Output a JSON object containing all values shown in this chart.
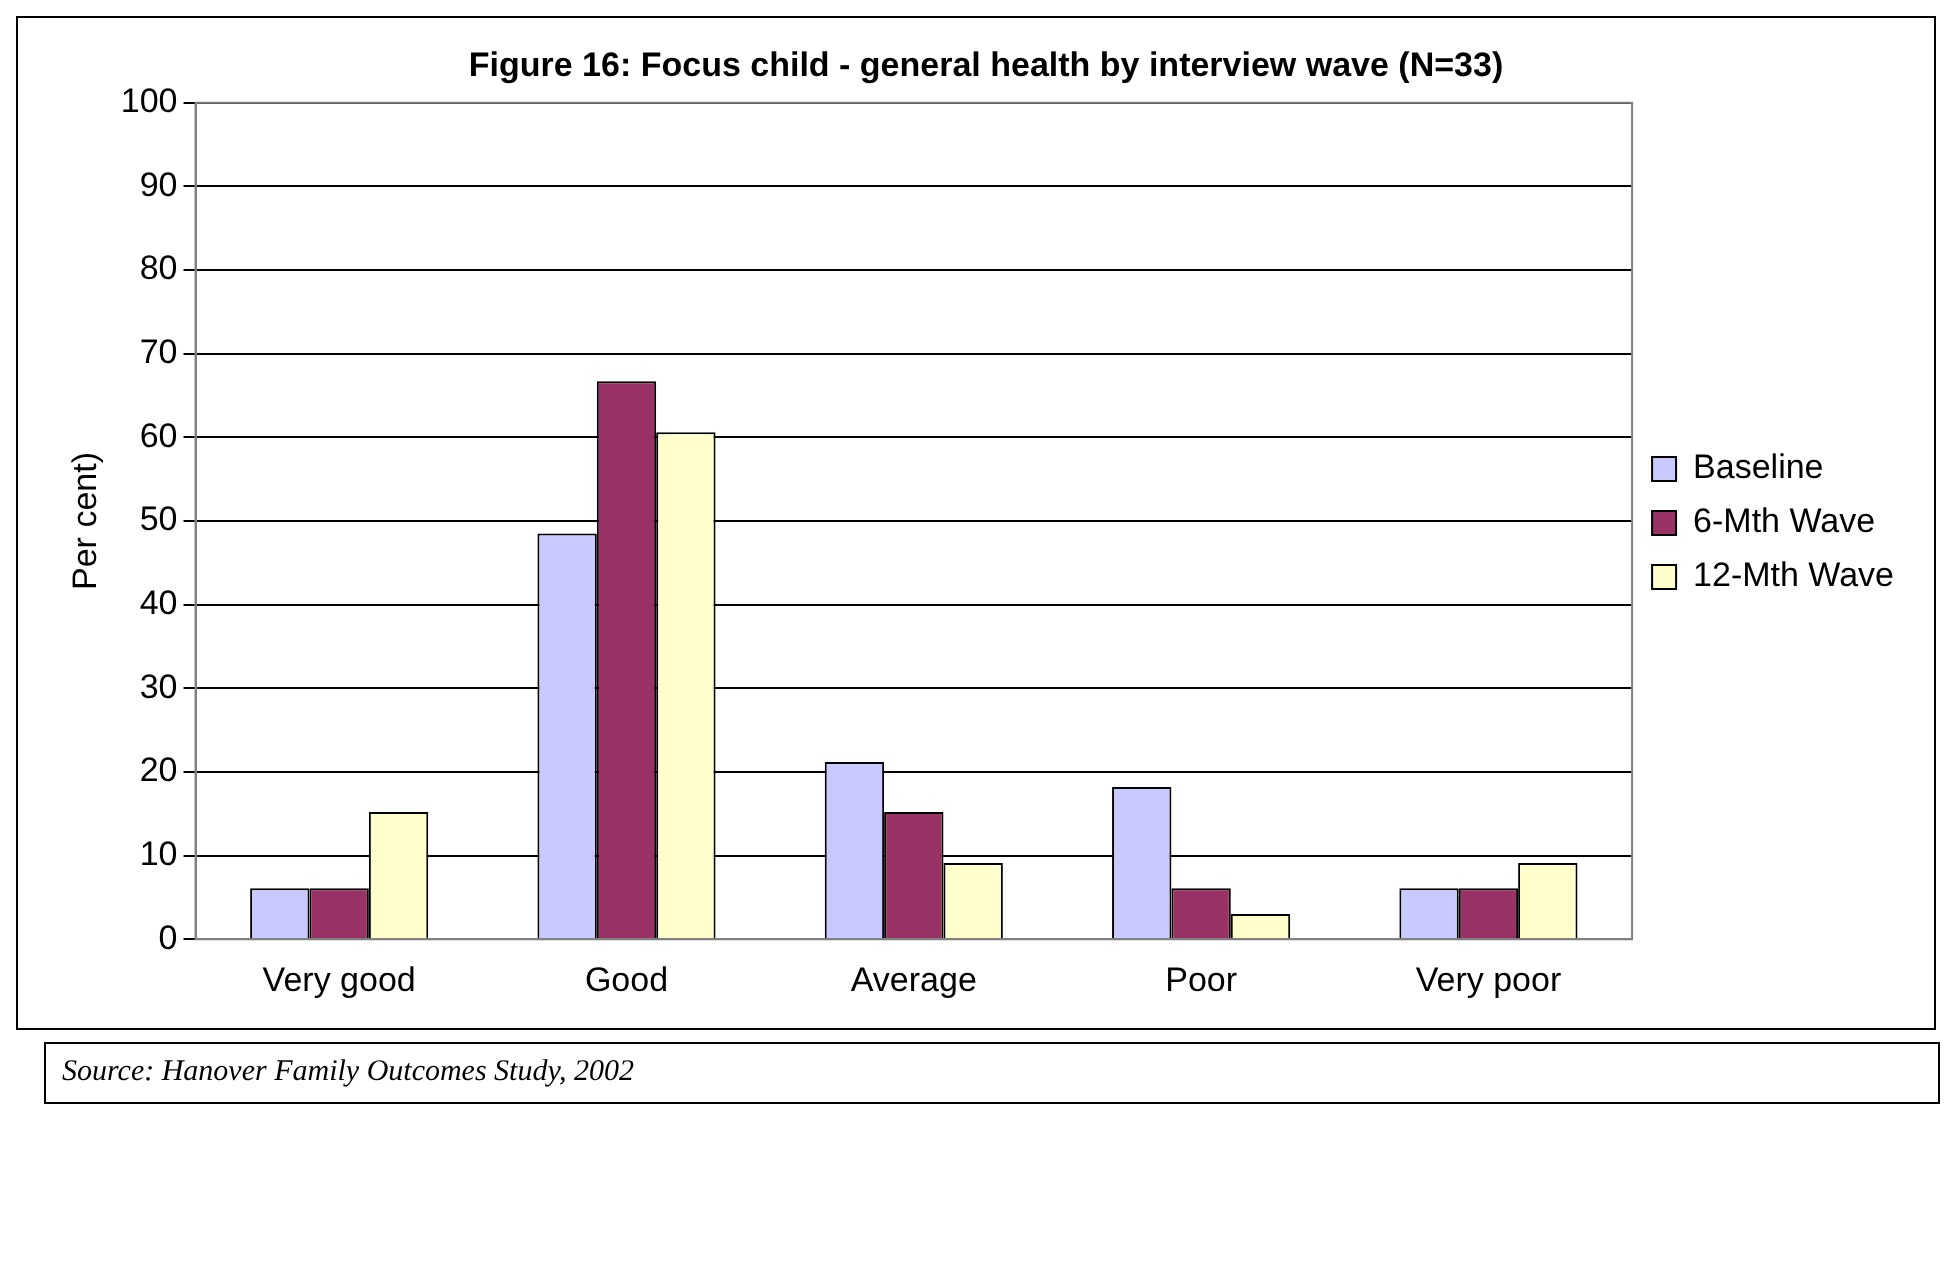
{
  "chart_data": {
    "type": "bar",
    "title": "Figure 16: Focus child - general health by interview wave (N=33)",
    "categories": [
      "Very good",
      "Good",
      "Average",
      "Poor",
      "Very poor"
    ],
    "series": [
      {
        "name": "Baseline",
        "color": "#c9c9ff",
        "values": [
          6.1,
          48.5,
          21.2,
          18.2,
          6.1
        ]
      },
      {
        "name": "6-Mth Wave",
        "color": "#993366",
        "values": [
          6.1,
          66.7,
          15.2,
          6.1,
          6.1
        ]
      },
      {
        "name": "12-Mth Wave",
        "color": "#ffffcc",
        "values": [
          15.2,
          60.6,
          9.1,
          3.0,
          9.1
        ]
      }
    ],
    "ylabel": "Per cent)",
    "ylim": [
      0,
      100
    ],
    "yticks": [
      0,
      10,
      20,
      30,
      40,
      50,
      60,
      70,
      80,
      90,
      100
    ],
    "grid": "y",
    "legend": "right",
    "annotations": [
      "Source: Hanover Family Outcomes Study, 2002"
    ]
  }
}
